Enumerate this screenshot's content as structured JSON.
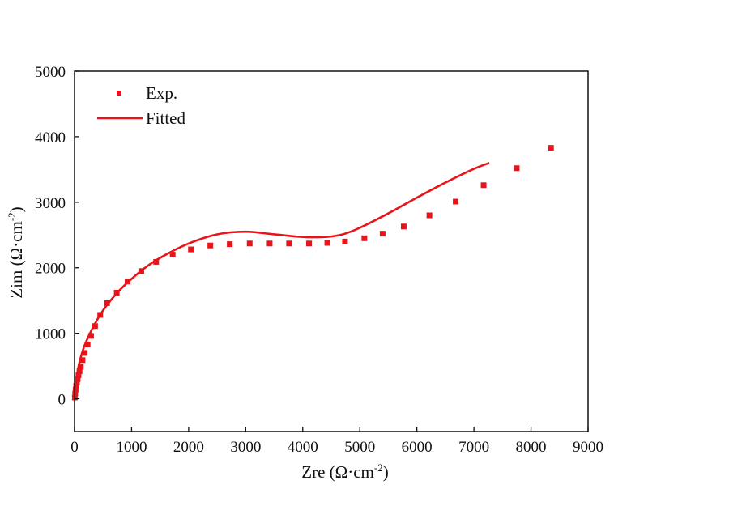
{
  "chart_data": {
    "type": "scatter",
    "title": "",
    "xlabel": "Zre (Ω·cm",
    "xlabel_sup": "-2",
    "xlabel_close": ")",
    "ylabel": "Zim (Ω·cm",
    "ylabel_sup": "-2",
    "ylabel_close": ")",
    "xlim": [
      0,
      9000
    ],
    "ylim": [
      -500,
      5000
    ],
    "xticks": [
      0,
      1000,
      2000,
      3000,
      4000,
      5000,
      6000,
      7000,
      8000,
      9000
    ],
    "xtick_labels": [
      "0",
      "1000",
      "2000",
      "3000",
      "4000",
      "5000",
      "6000",
      "7000",
      "8000",
      "9000"
    ],
    "yticks": [
      0,
      1000,
      2000,
      3000,
      4000,
      5000
    ],
    "ytick_labels": [
      "0",
      "1000",
      "2000",
      "3000",
      "4000",
      "5000"
    ],
    "grid": false,
    "legend_position": "top-left",
    "color": "#e8141a",
    "series": [
      {
        "name": "Exp.",
        "kind": "markers",
        "marker": "square",
        "x": [
          5,
          12,
          20,
          30,
          42,
          55,
          70,
          88,
          110,
          140,
          180,
          230,
          290,
          360,
          450,
          570,
          740,
          930,
          1170,
          1430,
          1720,
          2040,
          2380,
          2720,
          3070,
          3420,
          3760,
          4110,
          4430,
          4740,
          5080,
          5400,
          5770,
          6220,
          6680,
          7170,
          7750,
          8350
        ],
        "y": [
          20,
          80,
          140,
          200,
          250,
          300,
          360,
          420,
          490,
          590,
          700,
          830,
          960,
          1110,
          1280,
          1460,
          1620,
          1790,
          1950,
          2090,
          2200,
          2280,
          2340,
          2360,
          2370,
          2370,
          2370,
          2370,
          2380,
          2400,
          2450,
          2520,
          2630,
          2800,
          3010,
          3260,
          3520,
          3830
        ]
      },
      {
        "name": "Fitted",
        "kind": "line",
        "x": [
          0,
          50,
          150,
          300,
          500,
          750,
          1000,
          1300,
          1600,
          2000,
          2500,
          3000,
          3500,
          4000,
          4400,
          4700,
          5000,
          5500,
          6000,
          6500,
          7000,
          7270
        ],
        "y": [
          0,
          400,
          750,
          1050,
          1350,
          1620,
          1830,
          2040,
          2200,
          2370,
          2510,
          2550,
          2510,
          2470,
          2470,
          2510,
          2610,
          2830,
          3070,
          3300,
          3510,
          3600
        ]
      }
    ]
  }
}
